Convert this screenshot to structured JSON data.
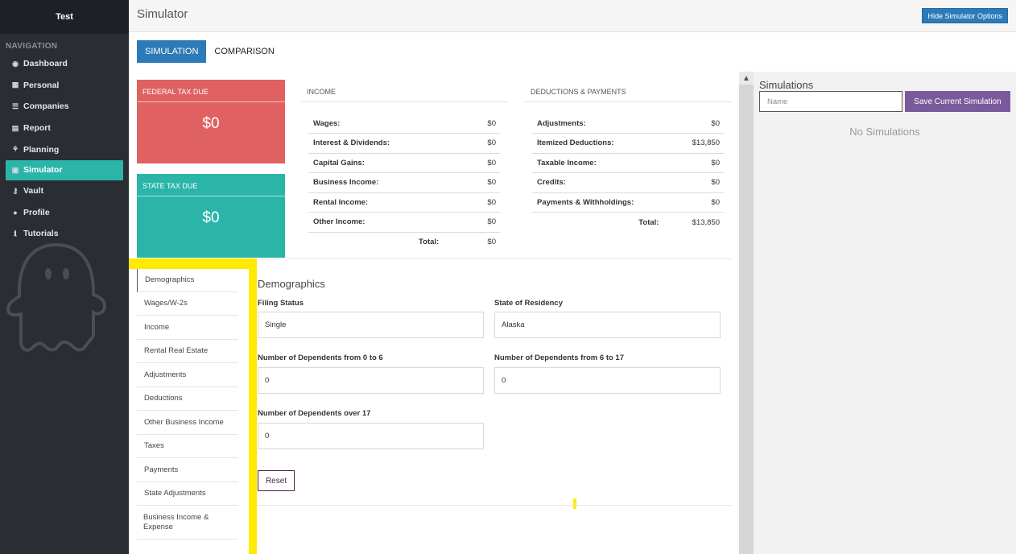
{
  "sidebar": {
    "brand": "Test",
    "heading": "NAVIGATION",
    "items": [
      {
        "label": "Dashboard",
        "icon": "dashboard-icon",
        "glyph": "◉"
      },
      {
        "label": "Personal",
        "icon": "table-icon",
        "glyph": "▦"
      },
      {
        "label": "Companies",
        "icon": "list-icon",
        "glyph": "☰"
      },
      {
        "label": "Report",
        "icon": "file-icon",
        "glyph": "▤"
      },
      {
        "label": "Planning",
        "icon": "sitemap-icon",
        "glyph": "⚘"
      },
      {
        "label": "Simulator",
        "icon": "calculator-icon",
        "glyph": "▣"
      },
      {
        "label": "Vault",
        "icon": "key-icon",
        "glyph": "⚷"
      },
      {
        "label": "Profile",
        "icon": "user-icon",
        "glyph": "●"
      },
      {
        "label": "Tutorials",
        "icon": "info-icon",
        "glyph": "ℹ"
      }
    ]
  },
  "header": {
    "title": "Simulator",
    "hide_button": "Hide Simulator Options"
  },
  "tabs": [
    "SIMULATION",
    "COMPARISON"
  ],
  "federal": {
    "label": "FEDERAL TAX DUE",
    "amount": "$0"
  },
  "state": {
    "label": "STATE TAX DUE",
    "amount": "$0"
  },
  "income": {
    "heading": "INCOME",
    "rows": [
      {
        "label": "Wages:",
        "value": "$0"
      },
      {
        "label": "Interest & Dividends:",
        "value": "$0"
      },
      {
        "label": "Capital Gains:",
        "value": "$0"
      },
      {
        "label": "Business Income:",
        "value": "$0"
      },
      {
        "label": "Rental Income:",
        "value": "$0"
      },
      {
        "label": "Other Income:",
        "value": "$0"
      }
    ],
    "total_label": "Total:",
    "total_value": "$0"
  },
  "deductions": {
    "heading": "DEDUCTIONS & PAYMENTS",
    "rows": [
      {
        "label": "Adjustments:",
        "value": "$0"
      },
      {
        "label": "Itemized Deductions:",
        "value": "$13,850"
      },
      {
        "label": "Taxable Income:",
        "value": "$0"
      },
      {
        "label": "Credits:",
        "value": "$0"
      },
      {
        "label": "Payments & Withholdings:",
        "value": "$0"
      }
    ],
    "total_label": "Total:",
    "total_value": "$13,850"
  },
  "sections": [
    "Demographics",
    "Wages/W-2s",
    "Income",
    "Rental Real Estate",
    "Adjustments",
    "Deductions",
    "Other Business Income",
    "Taxes",
    "Payments",
    "State Adjustments",
    "Business Income & Expense"
  ],
  "form": {
    "title": "Demographics",
    "filing_status_label": "Filing Status",
    "filing_status_value": "Single",
    "state_label": "State of Residency",
    "state_value": "Alaska",
    "dep_0_6_label": "Number of Dependents from 0 to 6",
    "dep_0_6_value": "0",
    "dep_6_17_label": "Number of Dependents from 6 to 17",
    "dep_6_17_value": "0",
    "dep_over_17_label": "Number of Dependents over 17",
    "dep_over_17_value": "0",
    "reset_label": "Reset"
  },
  "simulations": {
    "title": "Simulations",
    "name_placeholder": "Name",
    "save_label": "Save Current Simulation",
    "empty_text": "No Simulations"
  },
  "colors": {
    "sidebar_bg": "#2a2d33",
    "accent_teal": "#2bb5a9",
    "federal_red": "#e06161",
    "primary_blue": "#2c7ab8",
    "save_purple": "#7b5a9b",
    "highlight_yellow": "#ffea00"
  }
}
